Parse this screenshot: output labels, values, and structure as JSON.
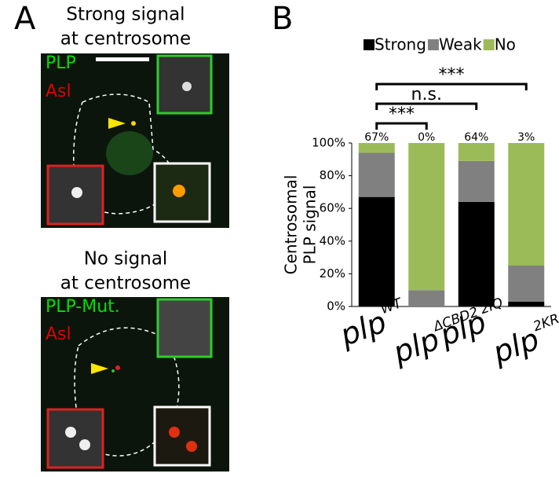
{
  "figure": {
    "panel_labels": [
      "A",
      "B"
    ],
    "panel_a": {
      "top_caption": [
        "Strong signal",
        "at centrosome"
      ],
      "top_labels": [
        "PLP",
        "Asl"
      ],
      "bottom_caption": [
        "No signal",
        "at centrosome"
      ],
      "bottom_labels": [
        "PLP-Mut.",
        "Asl"
      ]
    }
  },
  "chart_data": {
    "type": "stacked_bar",
    "categories": [
      "plp",
      "plp",
      "plp",
      "plp"
    ],
    "category_superscripts": [
      "WT",
      "ΔCBD2",
      "2IQ",
      "2KR"
    ],
    "ylabel": [
      "Centrosomal",
      "PLP signal"
    ],
    "ylim": [
      0,
      100
    ],
    "yticks": [
      {
        "value": 0,
        "label": "0%"
      },
      {
        "value": 20,
        "label": "20%"
      },
      {
        "value": 40,
        "label": "40%"
      },
      {
        "value": 60,
        "label": "60%"
      },
      {
        "value": 80,
        "label": "80%"
      },
      {
        "value": 100,
        "label": "100%"
      }
    ],
    "series": [
      {
        "name": "Strong",
        "color": "#000000",
        "values": [
          67,
          0,
          64,
          3
        ],
        "value_labels": [
          "67%",
          "0%",
          "64%",
          "3%"
        ]
      },
      {
        "name": "Weak",
        "color": "#808080",
        "values": [
          27,
          10,
          25,
          22
        ]
      },
      {
        "name": "No",
        "color": "#9bbb59",
        "values": [
          6,
          90,
          11,
          75
        ]
      }
    ],
    "annotations": [
      "***",
      "n.s.",
      "***"
    ]
  }
}
